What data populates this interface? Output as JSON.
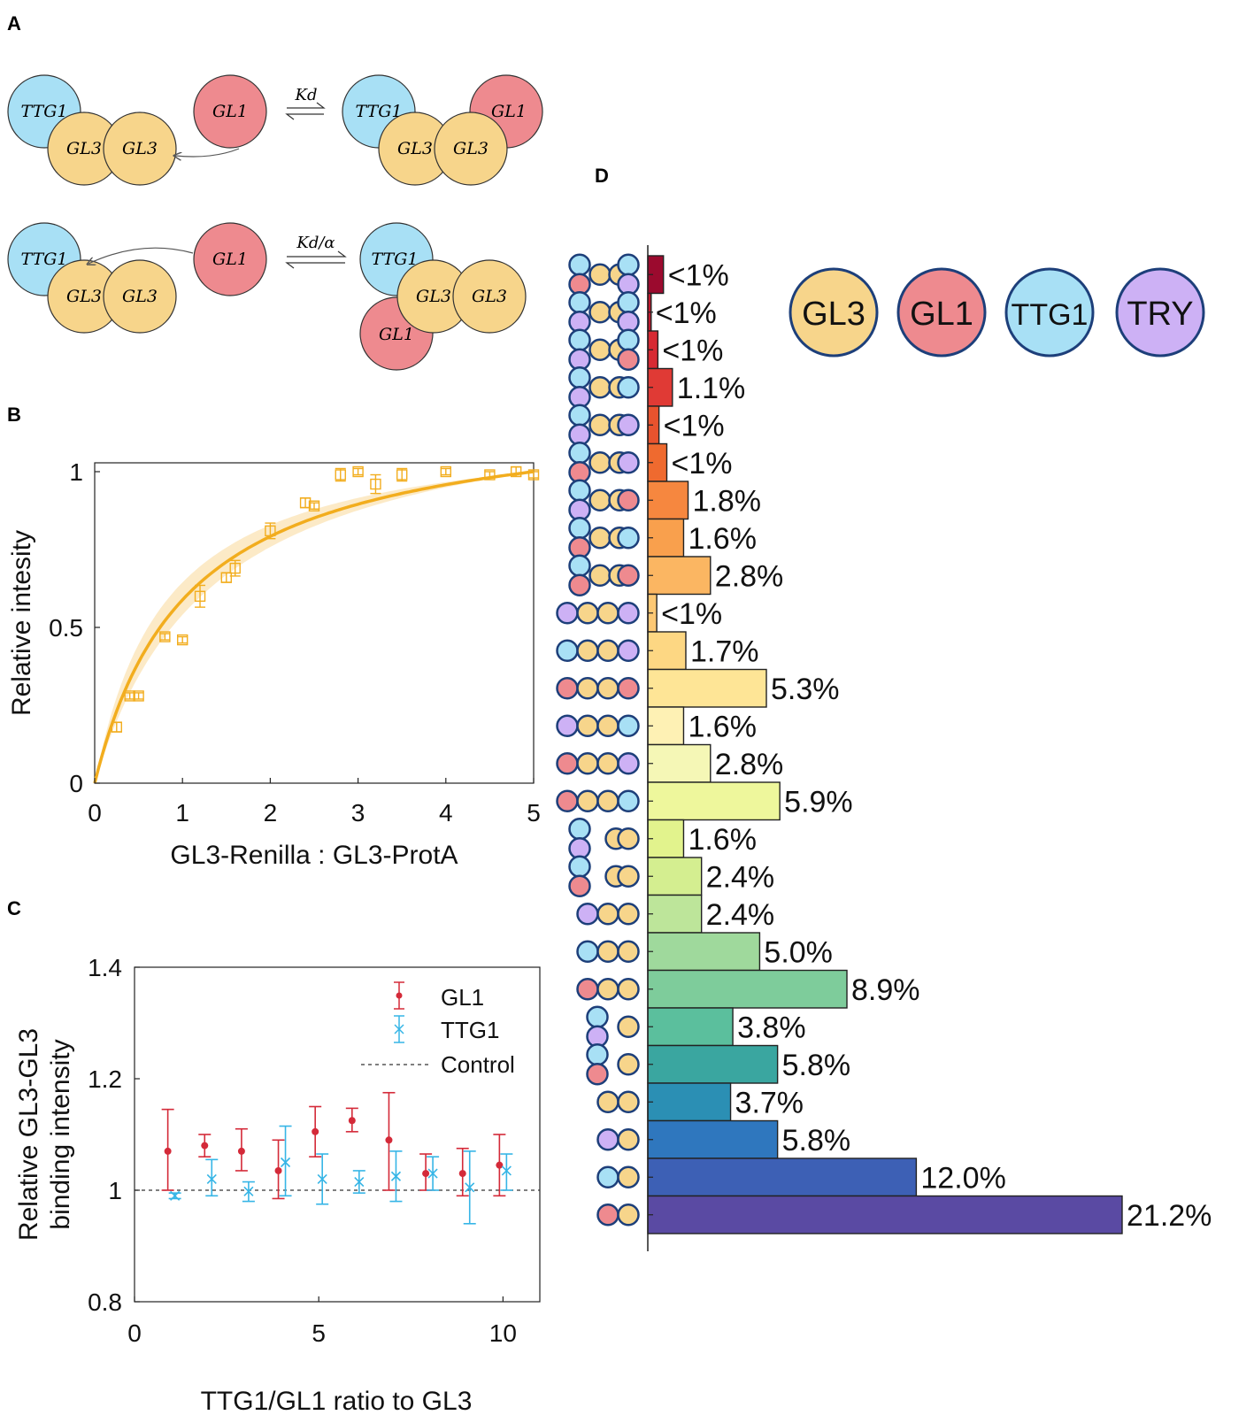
{
  "panel_labels": {
    "a": "A",
    "b": "B",
    "c": "C",
    "d": "D"
  },
  "panel_a": {
    "reaction_1": {
      "constant": "Kd",
      "left": {
        "c1": "TTG1",
        "c2": "GL3",
        "c3": "GL3",
        "free": "GL1"
      },
      "right": {
        "c1": "TTG1",
        "c2": "GL1",
        "c3": "GL3",
        "c4": "GL3"
      }
    },
    "reaction_2": {
      "constant": "Kd/α",
      "left": {
        "c1": "TTG1",
        "c2": "GL3",
        "c3": "GL3",
        "free": "GL1"
      },
      "right": {
        "c1": "TTG1",
        "c2": "GL3",
        "c3": "GL3",
        "c4": "GL1"
      }
    }
  },
  "legend_d": {
    "gl3": "GL3",
    "gl1": "GL1",
    "ttg1": "TTG1",
    "try": "TRY"
  },
  "colors": {
    "gl3": "#f7d58b",
    "gl1": "#ee8a8f",
    "ttg1": "#a8e0f5",
    "try": "#cdb1f5",
    "fit": "#f2ad1e",
    "gl1_series": "#d42a39",
    "ttg1_series": "#36b5e6"
  },
  "chart_data": [
    {
      "panel": "B",
      "type": "scatter",
      "xlabel": "GL3-Renilla : GL3-ProtA",
      "ylabel": "Relative intesity",
      "xlim": [
        0,
        5
      ],
      "ylim": [
        0,
        1
      ],
      "xticks": [
        "0",
        "1",
        "2",
        "3",
        "4",
        "5"
      ],
      "yticks": [
        "0",
        "0.5",
        "1"
      ],
      "points": [
        {
          "x": 0.25,
          "y": 0.18,
          "err": 0.015
        },
        {
          "x": 0.4,
          "y": 0.28,
          "err": 0.01
        },
        {
          "x": 0.5,
          "y": 0.28,
          "err": 0.01
        },
        {
          "x": 0.8,
          "y": 0.47,
          "err": 0.01
        },
        {
          "x": 1.0,
          "y": 0.46,
          "err": 0.01
        },
        {
          "x": 1.2,
          "y": 0.6,
          "err": 0.035
        },
        {
          "x": 1.5,
          "y": 0.66,
          "err": 0.015
        },
        {
          "x": 1.6,
          "y": 0.69,
          "err": 0.025
        },
        {
          "x": 2.0,
          "y": 0.81,
          "err": 0.025
        },
        {
          "x": 2.4,
          "y": 0.9,
          "err": 0.015
        },
        {
          "x": 2.5,
          "y": 0.89,
          "err": 0.01
        },
        {
          "x": 2.8,
          "y": 0.99,
          "err": 0.02
        },
        {
          "x": 3.0,
          "y": 1.0,
          "err": 0.01
        },
        {
          "x": 3.2,
          "y": 0.96,
          "err": 0.03
        },
        {
          "x": 3.5,
          "y": 0.99,
          "err": 0.02
        },
        {
          "x": 4.0,
          "y": 1.0,
          "err": 0.01
        },
        {
          "x": 4.5,
          "y": 0.99,
          "err": 0.01
        },
        {
          "x": 4.8,
          "y": 1.0,
          "err": 0.015
        },
        {
          "x": 5.0,
          "y": 0.99,
          "err": 0.01
        }
      ],
      "fit": {
        "type": "saturating",
        "k": 1.06
      },
      "band": {
        "type": "saturating",
        "k_low": 0.8,
        "k_high": 1.35
      }
    },
    {
      "panel": "C",
      "type": "scatter",
      "xlabel": "TTG1/GL1 ratio to GL3",
      "ylabel_line1": "Relative GL3-GL3",
      "ylabel_line2": "binding intensity",
      "xlim": [
        0,
        11
      ],
      "ylim": [
        0.8,
        1.4
      ],
      "xticks": [
        "0",
        "5",
        "10"
      ],
      "yticks": [
        "0.8",
        "1",
        "1.2",
        "1.4"
      ],
      "control": 1.0,
      "legend": {
        "gl1": "GL1",
        "ttg1": "TTG1",
        "control": "Control"
      },
      "series": [
        {
          "name": "GL1",
          "points": [
            {
              "x": 1,
              "y": 1.07,
              "lo": 1.0,
              "hi": 1.145
            },
            {
              "x": 2,
              "y": 1.08,
              "lo": 1.06,
              "hi": 1.1
            },
            {
              "x": 3,
              "y": 1.07,
              "lo": 1.035,
              "hi": 1.11
            },
            {
              "x": 4,
              "y": 1.035,
              "lo": 0.985,
              "hi": 1.09
            },
            {
              "x": 5,
              "y": 1.105,
              "lo": 1.06,
              "hi": 1.15
            },
            {
              "x": 6,
              "y": 1.125,
              "lo": 1.105,
              "hi": 1.147
            },
            {
              "x": 7,
              "y": 1.09,
              "lo": 1.0,
              "hi": 1.175
            },
            {
              "x": 8,
              "y": 1.03,
              "lo": 1.0,
              "hi": 1.065
            },
            {
              "x": 9,
              "y": 1.03,
              "lo": 0.99,
              "hi": 1.075
            },
            {
              "x": 10,
              "y": 1.045,
              "lo": 0.99,
              "hi": 1.1
            }
          ]
        },
        {
          "name": "TTG1",
          "points": [
            {
              "x": 1,
              "y": 0.99,
              "lo": 0.985,
              "hi": 0.995
            },
            {
              "x": 2,
              "y": 1.02,
              "lo": 0.99,
              "hi": 1.055
            },
            {
              "x": 3,
              "y": 0.998,
              "lo": 0.98,
              "hi": 1.015
            },
            {
              "x": 4,
              "y": 1.05,
              "lo": 0.99,
              "hi": 1.115
            },
            {
              "x": 5,
              "y": 1.02,
              "lo": 0.975,
              "hi": 1.065
            },
            {
              "x": 6,
              "y": 1.015,
              "lo": 0.995,
              "hi": 1.035
            },
            {
              "x": 7,
              "y": 1.025,
              "lo": 0.98,
              "hi": 1.07
            },
            {
              "x": 8,
              "y": 1.03,
              "lo": 1.0,
              "hi": 1.06
            },
            {
              "x": 9,
              "y": 1.005,
              "lo": 0.94,
              "hi": 1.07
            },
            {
              "x": 10,
              "y": 1.035,
              "lo": 1.0,
              "hi": 1.065
            }
          ]
        }
      ]
    },
    {
      "panel": "D",
      "type": "bar",
      "orientation": "horizontal",
      "xlim_percent": [
        0,
        21.2
      ],
      "bars": [
        {
          "label": "<1%",
          "value": 0.7,
          "color": "#9b0a2e",
          "complex": {
            "a": "ttg1",
            "b": "gl1",
            "mid": [
              "gl3",
              "gl3"
            ],
            "c": "ttg1",
            "d": "try"
          }
        },
        {
          "label": "<1%",
          "value": 0.15,
          "color": "#c0182e",
          "complex": {
            "a": "ttg1",
            "b": "try",
            "mid": [
              "gl3",
              "gl3"
            ],
            "c": "ttg1",
            "d": "try"
          }
        },
        {
          "label": "<1%",
          "value": 0.45,
          "color": "#d72a33",
          "complex": {
            "a": "ttg1",
            "b": "try",
            "mid": [
              "gl3",
              "gl3"
            ],
            "c": "ttg1",
            "d": "gl1"
          }
        },
        {
          "label": "1.1%",
          "value": 1.1,
          "color": "#e03a35",
          "complex": {
            "a": "ttg1",
            "b": "try",
            "mid": [
              "gl3",
              "gl3"
            ],
            "single": "ttg1"
          }
        },
        {
          "label": "<1%",
          "value": 0.5,
          "color": "#e8532e",
          "complex": {
            "a": "ttg1",
            "b": "try",
            "mid": [
              "gl3",
              "gl3"
            ],
            "single": "try"
          }
        },
        {
          "label": "<1%",
          "value": 0.85,
          "color": "#ef6a2f",
          "complex": {
            "a": "ttg1",
            "b": "gl1",
            "mid": [
              "gl3",
              "gl3"
            ],
            "single": "try"
          }
        },
        {
          "label": "1.8%",
          "value": 1.8,
          "color": "#f6873f",
          "complex": {
            "a": "ttg1",
            "b": "try",
            "mid": [
              "gl3",
              "gl3"
            ],
            "single": "gl1"
          }
        },
        {
          "label": "1.6%",
          "value": 1.6,
          "color": "#f9a04d",
          "complex": {
            "a": "ttg1",
            "b": "gl1",
            "mid": [
              "gl3",
              "gl3"
            ],
            "single": "ttg1"
          }
        },
        {
          "label": "2.8%",
          "value": 2.8,
          "color": "#fbb662",
          "complex": {
            "a": "ttg1",
            "b": "gl1",
            "mid": [
              "gl3",
              "gl3"
            ],
            "single": "gl1"
          }
        },
        {
          "label": "<1%",
          "value": 0.4,
          "color": "#fdc874",
          "complex": {
            "row": [
              "try",
              "gl3",
              "gl3",
              "try"
            ]
          }
        },
        {
          "label": "1.7%",
          "value": 1.7,
          "color": "#fdd783",
          "complex": {
            "row": [
              "ttg1",
              "gl3",
              "gl3",
              "try"
            ]
          }
        },
        {
          "label": "5.3%",
          "value": 5.3,
          "color": "#fee596",
          "complex": {
            "row": [
              "gl1",
              "gl3",
              "gl3",
              "gl1"
            ]
          }
        },
        {
          "label": "1.6%",
          "value": 1.6,
          "color": "#fef1b4",
          "complex": {
            "row": [
              "try",
              "gl3",
              "gl3",
              "ttg1"
            ]
          }
        },
        {
          "label": "2.8%",
          "value": 2.8,
          "color": "#f5f7b6",
          "complex": {
            "row": [
              "gl1",
              "gl3",
              "gl3",
              "try"
            ]
          }
        },
        {
          "label": "5.9%",
          "value": 5.9,
          "color": "#eef79c",
          "complex": {
            "row": [
              "gl1",
              "gl3",
              "gl3",
              "ttg1"
            ]
          }
        },
        {
          "label": "1.6%",
          "value": 1.6,
          "color": "#e2f38d",
          "complex": {
            "a": "ttg1",
            "b": "try",
            "mid": [
              "gl3"
            ]
          }
        },
        {
          "label": "2.4%",
          "value": 2.4,
          "color": "#d4ee90",
          "complex": {
            "a": "ttg1",
            "b": "gl1",
            "mid": [
              "gl3"
            ]
          }
        },
        {
          "label": "2.4%",
          "value": 2.4,
          "color": "#bde59a",
          "complex": {
            "row": [
              "try",
              "gl3",
              "gl3"
            ]
          }
        },
        {
          "label": "5.0%",
          "value": 5.0,
          "color": "#9fd99c",
          "complex": {
            "row": [
              "ttg1",
              "gl3",
              "gl3"
            ]
          }
        },
        {
          "label": "8.9%",
          "value": 8.9,
          "color": "#7ecc9b",
          "complex": {
            "row": [
              "gl1",
              "gl3",
              "gl3"
            ]
          }
        },
        {
          "label": "3.8%",
          "value": 3.8,
          "color": "#5bbf9d",
          "complex": {
            "a": "ttg1",
            "b": "try",
            "single": "gl3"
          }
        },
        {
          "label": "5.8%",
          "value": 5.8,
          "color": "#3aa6a0",
          "complex": {
            "a": "ttg1",
            "b": "gl1",
            "single": "gl3"
          }
        },
        {
          "label": "3.7%",
          "value": 3.7,
          "color": "#2b8fb4",
          "complex": {
            "row": [
              "gl3",
              "gl3"
            ]
          }
        },
        {
          "label": "5.8%",
          "value": 5.8,
          "color": "#2f77be",
          "complex": {
            "row": [
              "try",
              "gl3"
            ]
          }
        },
        {
          "label": "12.0%",
          "value": 12.0,
          "color": "#3d60b5",
          "complex": {
            "row": [
              "ttg1",
              "gl3"
            ]
          }
        },
        {
          "label": "21.2%",
          "value": 21.2,
          "color": "#5a4aa3",
          "complex": {
            "row": [
              "gl1",
              "gl3"
            ]
          }
        }
      ]
    }
  ]
}
